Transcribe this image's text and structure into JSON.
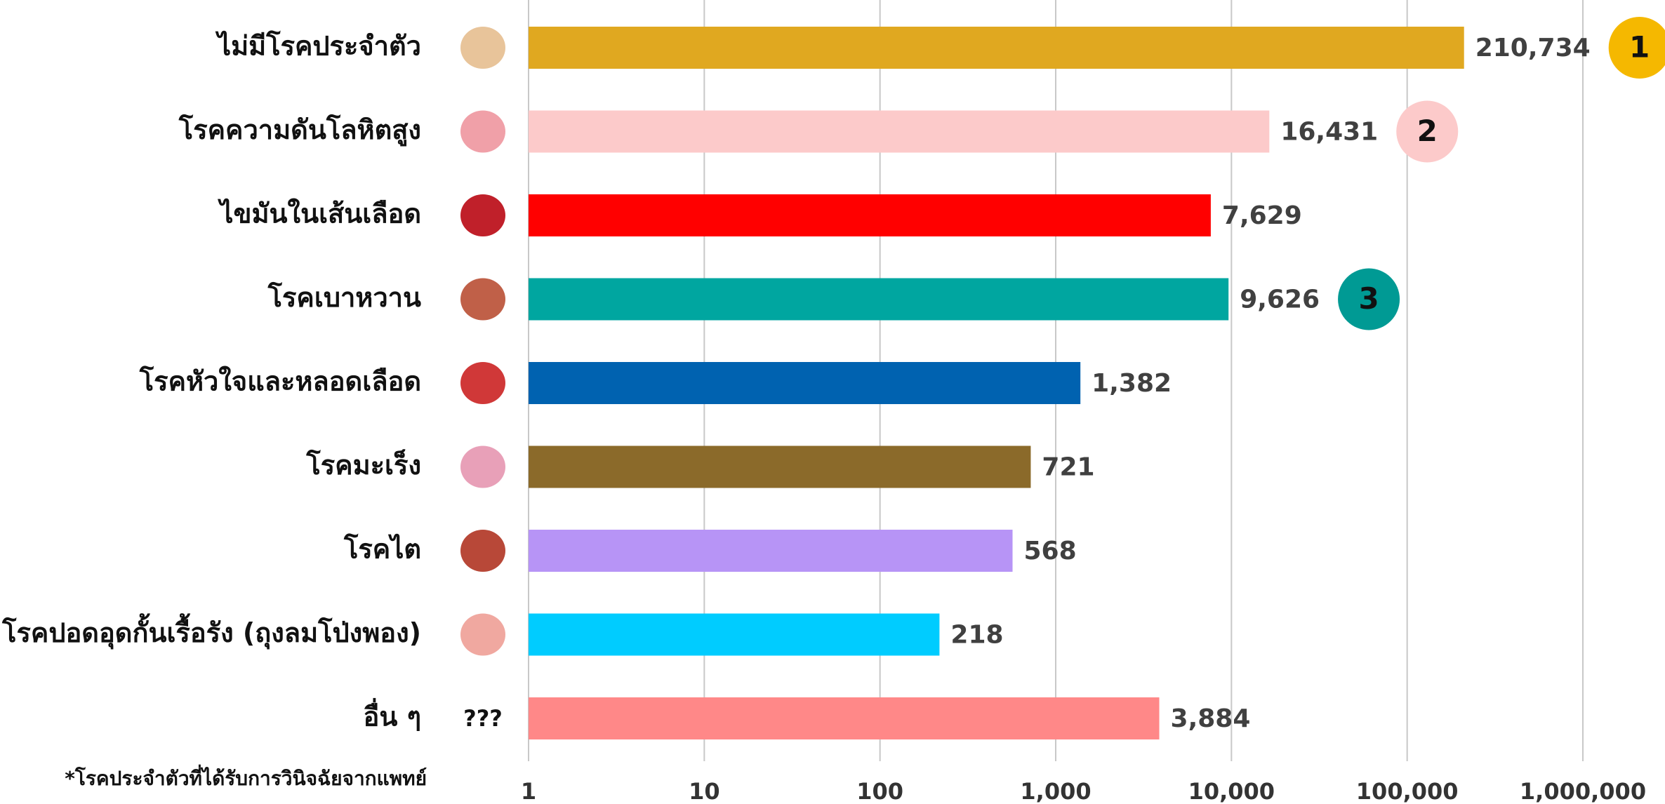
{
  "chart_data": {
    "type": "bar",
    "orientation": "horizontal",
    "log_scale": true,
    "grid": true,
    "categories": [
      "ไม่มีโรคประจำตัว",
      "โรคความดันโลหิตสูง",
      "ไขมันในเส้นเลือด",
      "โรคเบาหวาน",
      "โรคหัวใจและหลอดเลือด",
      "โรคมะเร็ง",
      "โรคไต",
      "โรคปอดอุดกั้นเรื้อรัง (ถุงลมโป่งพอง)",
      "อื่น ๆ"
    ],
    "values": [
      210734,
      16431,
      7629,
      9626,
      1382,
      721,
      568,
      218,
      3884
    ],
    "value_labels": [
      "210,734",
      "16,431",
      "7,629",
      "9,626",
      "1,382",
      "721",
      "568",
      "218",
      "3,884"
    ],
    "colors": [
      "#e0a820",
      "#fccaca",
      "#ff0000",
      "#00a6a0",
      "#0062b0",
      "#8b6a2a",
      "#b794f6",
      "#00ccff",
      "#ff8888"
    ],
    "ranks": [
      1,
      2,
      null,
      3,
      null,
      null,
      null,
      null,
      null
    ],
    "rank_colors": [
      "#f5b800",
      "#fccaca",
      null,
      "#009a94",
      null,
      null,
      null,
      null,
      null
    ],
    "other_icon_text": "???",
    "xlim": [
      1,
      1000000
    ],
    "xticks": [
      1,
      10,
      100,
      {
        "value": 1000,
        "label": "1,000"
      },
      {
        "value": 10000,
        "label": "10,000"
      },
      {
        "value": 100000,
        "label": "100,000"
      },
      {
        "value": 1000000,
        "label": "1,000,000"
      }
    ],
    "footnote": "*โรคประจำตัวที่ได้รับการวินิจฉัยจากแพทย์"
  }
}
